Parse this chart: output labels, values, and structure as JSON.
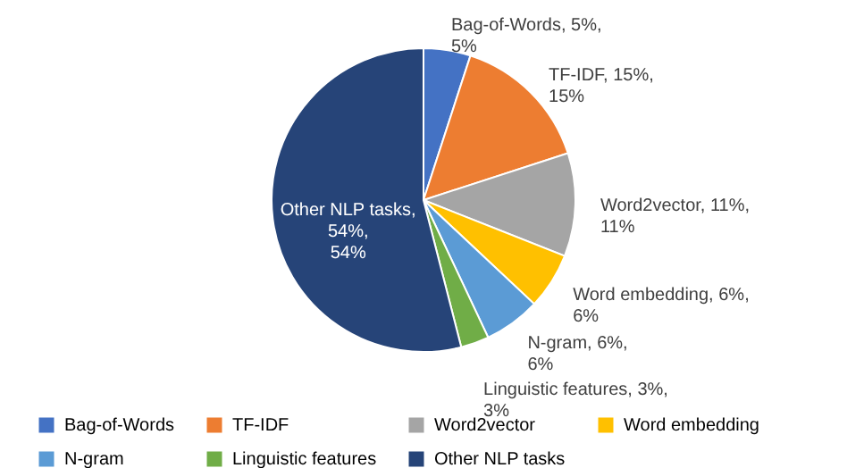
{
  "chart_data": {
    "type": "pie",
    "categories": [
      "Bag-of-Words",
      "TF-IDF",
      "Word2vector",
      "Word embedding",
      "N-gram",
      "Linguistic features",
      "Other NLP tasks"
    ],
    "values": [
      5,
      15,
      11,
      6,
      6,
      3,
      54
    ],
    "colors": [
      "#4472c4",
      "#ed7d31",
      "#a5a5a5",
      "#ffc000",
      "#5b9bd5",
      "#70ad47",
      "#264478"
    ],
    "value_labels": [
      "Bag-of-Words, 5%, 5%",
      "TF-IDF, 15%, 15%",
      "Word2vector, 11%, 11%",
      "Word embedding, 6%, 6%",
      "N-gram, 6%, 6%",
      "Linguistic features, 3%, 3%",
      "Other NLP tasks, 54%, 54%"
    ],
    "legend": "bottom"
  }
}
